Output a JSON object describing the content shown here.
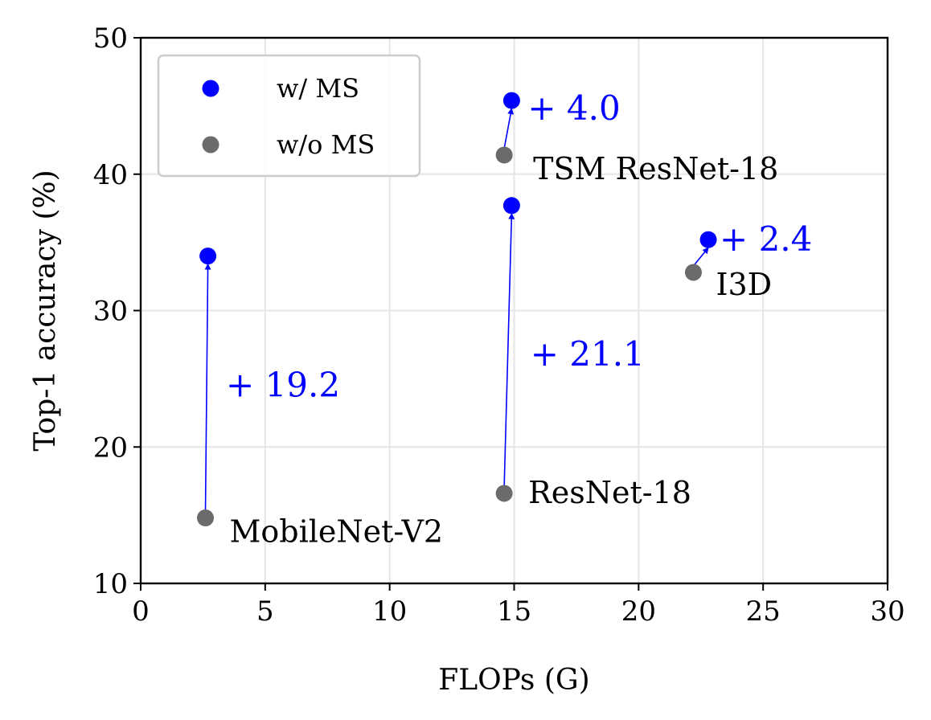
{
  "chart_data": {
    "type": "scatter",
    "xlabel": "FLOPs (G)",
    "ylabel": "Top-1 accuracy (%)",
    "xlim": [
      0,
      30
    ],
    "ylim": [
      10,
      50
    ],
    "xticks": [
      0,
      5,
      10,
      15,
      20,
      25,
      30
    ],
    "yticks": [
      10,
      20,
      30,
      40,
      50
    ],
    "grid": true,
    "legend": {
      "placement": "top-left",
      "entries": [
        {
          "label": "w/ MS",
          "color": "#0000ff"
        },
        {
          "label": "w/o MS",
          "color": "#6b6b6b"
        }
      ]
    },
    "series": [
      {
        "name": "w/ MS",
        "color": "#0000ff",
        "points": [
          {
            "x": 2.7,
            "y": 34.0
          },
          {
            "x": 14.9,
            "y": 37.7
          },
          {
            "x": 14.9,
            "y": 45.4
          },
          {
            "x": 22.8,
            "y": 35.2
          }
        ]
      },
      {
        "name": "w/o MS",
        "color": "#6b6b6b",
        "points": [
          {
            "x": 2.6,
            "y": 14.8
          },
          {
            "x": 14.6,
            "y": 16.6
          },
          {
            "x": 14.6,
            "y": 41.4
          },
          {
            "x": 22.2,
            "y": 32.8
          }
        ]
      }
    ],
    "models": [
      {
        "label": "MobileNet-V2",
        "gain": "+ 19.2",
        "from": {
          "x": 2.6,
          "y": 14.8
        },
        "to": {
          "x": 2.7,
          "y": 34.0
        }
      },
      {
        "label": "ResNet-18",
        "gain": "+ 21.1",
        "from": {
          "x": 14.6,
          "y": 16.6
        },
        "to": {
          "x": 14.9,
          "y": 37.7
        }
      },
      {
        "label": "TSM ResNet-18",
        "gain": "+ 4.0",
        "from": {
          "x": 14.6,
          "y": 41.4
        },
        "to": {
          "x": 14.9,
          "y": 45.4
        }
      },
      {
        "label": "I3D",
        "gain": "+ 2.4",
        "from": {
          "x": 22.2,
          "y": 32.8
        },
        "to": {
          "x": 22.8,
          "y": 35.2
        }
      }
    ]
  }
}
